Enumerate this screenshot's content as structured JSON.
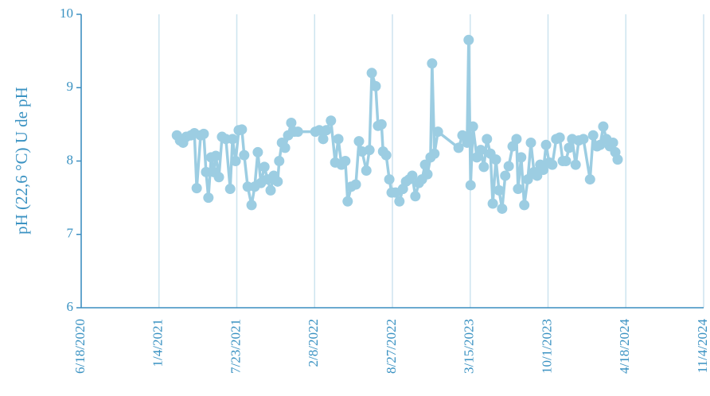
{
  "chart_data": {
    "type": "line",
    "y_label": "pH (22,6 °C) U de pH",
    "series": [
      {
        "name": "pH",
        "color": "#9ccde2",
        "x": [
          "2021-02-19",
          "2021-02-27",
          "2021-03-07",
          "2021-03-15",
          "2021-03-27",
          "2021-04-05",
          "2021-04-11",
          "2021-04-21",
          "2021-04-29",
          "2021-05-05",
          "2021-05-11",
          "2021-05-18",
          "2021-05-24",
          "2021-05-30",
          "2021-06-07",
          "2021-06-15",
          "2021-06-25",
          "2021-07-06",
          "2021-07-12",
          "2021-07-20",
          "2021-07-28",
          "2021-08-05",
          "2021-08-11",
          "2021-08-20",
          "2021-08-30",
          "2021-09-07",
          "2021-09-15",
          "2021-09-23",
          "2021-10-02",
          "2021-10-10",
          "2021-10-18",
          "2021-10-26",
          "2021-11-05",
          "2021-11-09",
          "2021-11-16",
          "2021-11-24",
          "2021-12-02",
          "2021-12-10",
          "2021-12-18",
          "2021-12-27",
          "2022-02-10",
          "2022-02-20",
          "2022-03-02",
          "2022-03-10",
          "2022-03-22",
          "2022-04-02",
          "2022-04-10",
          "2022-04-18",
          "2022-04-28",
          "2022-05-04",
          "2022-05-13",
          "2022-05-25",
          "2022-06-02",
          "2022-06-10",
          "2022-06-21",
          "2022-06-29",
          "2022-07-05",
          "2022-07-15",
          "2022-07-21",
          "2022-07-30",
          "2022-08-03",
          "2022-08-11",
          "2022-08-19",
          "2022-08-25",
          "2022-09-04",
          "2022-09-14",
          "2022-09-23",
          "2022-10-01",
          "2022-10-09",
          "2022-10-17",
          "2022-10-25",
          "2022-11-03",
          "2022-11-11",
          "2022-11-19",
          "2022-11-25",
          "2022-12-03",
          "2022-12-07",
          "2022-12-13",
          "2022-12-22",
          "2023-02-13",
          "2023-02-23",
          "2023-03-07",
          "2023-03-11",
          "2023-03-16",
          "2023-03-22",
          "2023-04-01",
          "2023-04-11",
          "2023-04-19",
          "2023-04-27",
          "2023-05-06",
          "2023-05-12",
          "2023-05-20",
          "2023-05-28",
          "2023-06-05",
          "2023-06-13",
          "2023-06-22",
          "2023-07-02",
          "2023-07-12",
          "2023-07-16",
          "2023-07-24",
          "2023-08-01",
          "2023-08-10",
          "2023-08-18",
          "2023-08-26",
          "2023-09-03",
          "2023-09-11",
          "2023-09-19",
          "2023-09-26",
          "2023-10-04",
          "2023-10-12",
          "2023-10-22",
          "2023-10-31",
          "2023-11-08",
          "2023-11-16",
          "2023-11-24",
          "2023-12-02",
          "2023-12-11",
          "2023-12-19",
          "2023-12-31",
          "2024-01-17",
          "2024-01-25",
          "2024-02-04",
          "2024-02-12",
          "2024-02-20",
          "2024-02-28",
          "2024-03-08",
          "2024-03-16",
          "2024-03-22",
          "2024-03-28"
        ],
        "values": [
          8.35,
          8.28,
          8.25,
          8.33,
          8.35,
          8.38,
          7.63,
          8.35,
          8.37,
          7.85,
          7.5,
          8.05,
          7.85,
          8.07,
          7.78,
          8.33,
          8.3,
          7.62,
          8.3,
          8.0,
          8.42,
          8.43,
          8.08,
          7.65,
          7.4,
          7.65,
          8.12,
          7.7,
          7.92,
          7.75,
          7.6,
          7.8,
          7.72,
          8.0,
          8.25,
          8.18,
          8.35,
          8.52,
          8.4,
          8.4,
          8.4,
          8.42,
          8.3,
          8.42,
          8.55,
          7.98,
          8.3,
          7.95,
          8.0,
          7.45,
          7.65,
          7.68,
          8.27,
          8.13,
          7.87,
          8.15,
          9.2,
          9.02,
          8.48,
          8.5,
          8.13,
          8.08,
          7.75,
          7.57,
          7.57,
          7.45,
          7.62,
          7.72,
          7.75,
          7.8,
          7.52,
          7.7,
          7.75,
          7.95,
          7.82,
          8.05,
          9.33,
          8.1,
          8.4,
          8.18,
          8.35,
          8.25,
          9.65,
          7.67,
          8.47,
          8.05,
          8.15,
          7.92,
          8.3,
          8.1,
          7.42,
          8.02,
          7.6,
          7.35,
          7.8,
          7.93,
          8.2,
          8.3,
          7.62,
          8.05,
          7.4,
          7.75,
          8.25,
          7.85,
          7.8,
          7.95,
          7.88,
          8.22,
          7.98,
          7.95,
          8.3,
          8.32,
          8.0,
          8.0,
          8.18,
          8.3,
          7.95,
          8.28,
          8.3,
          7.75,
          8.35,
          8.2,
          8.22,
          8.47,
          8.3,
          8.2,
          8.25,
          8.12,
          8.02
        ]
      }
    ],
    "xlim": [
      "2020-06-18",
      "2024-11-04"
    ],
    "xticks": [
      {
        "value": "2020-06-18",
        "label": "6/18/2020"
      },
      {
        "value": "2021-01-04",
        "label": "1/4/2021"
      },
      {
        "value": "2021-07-23",
        "label": "7/23/2021"
      },
      {
        "value": "2022-02-08",
        "label": "2/8/2022"
      },
      {
        "value": "2022-08-27",
        "label": "8/27/2022"
      },
      {
        "value": "2023-03-15",
        "label": "3/15/2023"
      },
      {
        "value": "2023-10-01",
        "label": "10/1/2023"
      },
      {
        "value": "2024-04-18",
        "label": "4/18/2024"
      },
      {
        "value": "2024-11-04",
        "label": "11/4/2024"
      }
    ],
    "ylim": [
      6,
      10
    ],
    "yticks": [
      6,
      7,
      8,
      9,
      10
    ],
    "grid": "x"
  }
}
